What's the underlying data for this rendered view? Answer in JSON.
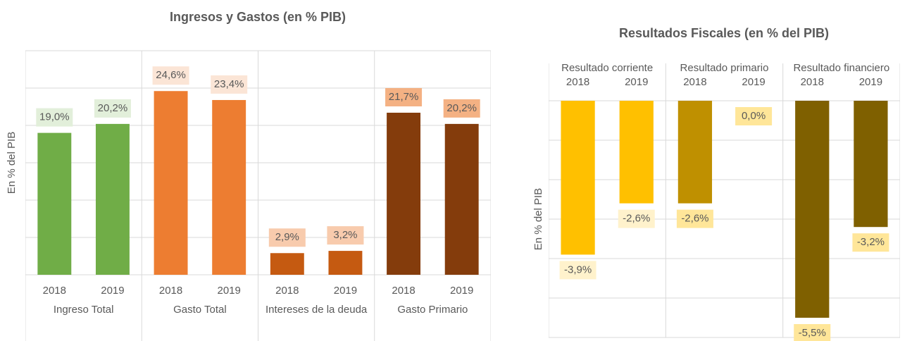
{
  "chart_data": [
    {
      "type": "bar",
      "title": "Ingresos y Gastos  (en % PIB)",
      "y_label": "En % del PIB",
      "x_axis_position": "bottom",
      "label_position": "above",
      "groups": [
        "Ingreso Total",
        "Gasto Total",
        "Intereses de la deuda",
        "Gasto Primario"
      ],
      "categories": [
        "2018",
        "2019",
        "2018",
        "2019",
        "2018",
        "2019",
        "2018",
        "2019"
      ],
      "values": [
        19.0,
        20.2,
        24.6,
        23.4,
        2.9,
        3.2,
        21.7,
        20.2
      ],
      "value_labels": [
        "19,0%",
        "20,2%",
        "24,6%",
        "23,4%",
        "2,9%",
        "3,2%",
        "21,7%",
        "20,2%"
      ],
      "colors": [
        "#70ad47",
        "#70ad47",
        "#ed7d31",
        "#ed7d31",
        "#c55a11",
        "#c55a11",
        "#843c0c",
        "#843c0c"
      ],
      "label_colors": [
        "#e2efda",
        "#e2efda",
        "#fbe5d6",
        "#fbe5d6",
        "#f8cbad",
        "#f8cbad",
        "#f4b183",
        "#f4b183"
      ],
      "ylim": [
        0,
        30
      ],
      "yticks": [
        0,
        5,
        10,
        15,
        20,
        25,
        30
      ],
      "grid": true
    },
    {
      "type": "bar",
      "title": "Resultados Fiscales (en % del PIB)",
      "y_label": "En % del PIB",
      "x_axis_position": "top",
      "label_position": "below",
      "groups": [
        "Resultado corriente",
        "Resultado primario",
        "Resultado financiero"
      ],
      "categories": [
        "2018",
        "2019",
        "2018",
        "2019",
        "2018",
        "2019"
      ],
      "values": [
        -3.9,
        -2.6,
        -2.6,
        0.0,
        -5.5,
        -3.2
      ],
      "value_labels": [
        "-3,9%",
        "-2,6%",
        "-2,6%",
        "0,0%",
        "-5,5%",
        "-3,2%"
      ],
      "colors": [
        "#ffc000",
        "#ffc000",
        "#bf9000",
        "#bf9000",
        "#7f6000",
        "#7f6000"
      ],
      "label_colors": [
        "#fff2cc",
        "#fff2cc",
        "#ffe699",
        "#ffe699",
        "#ffe699",
        "#ffe699"
      ],
      "ylim": [
        -6,
        0
      ],
      "yticks": [
        -6,
        -5,
        -4,
        -3,
        -2,
        -1,
        0
      ],
      "grid": true
    }
  ]
}
